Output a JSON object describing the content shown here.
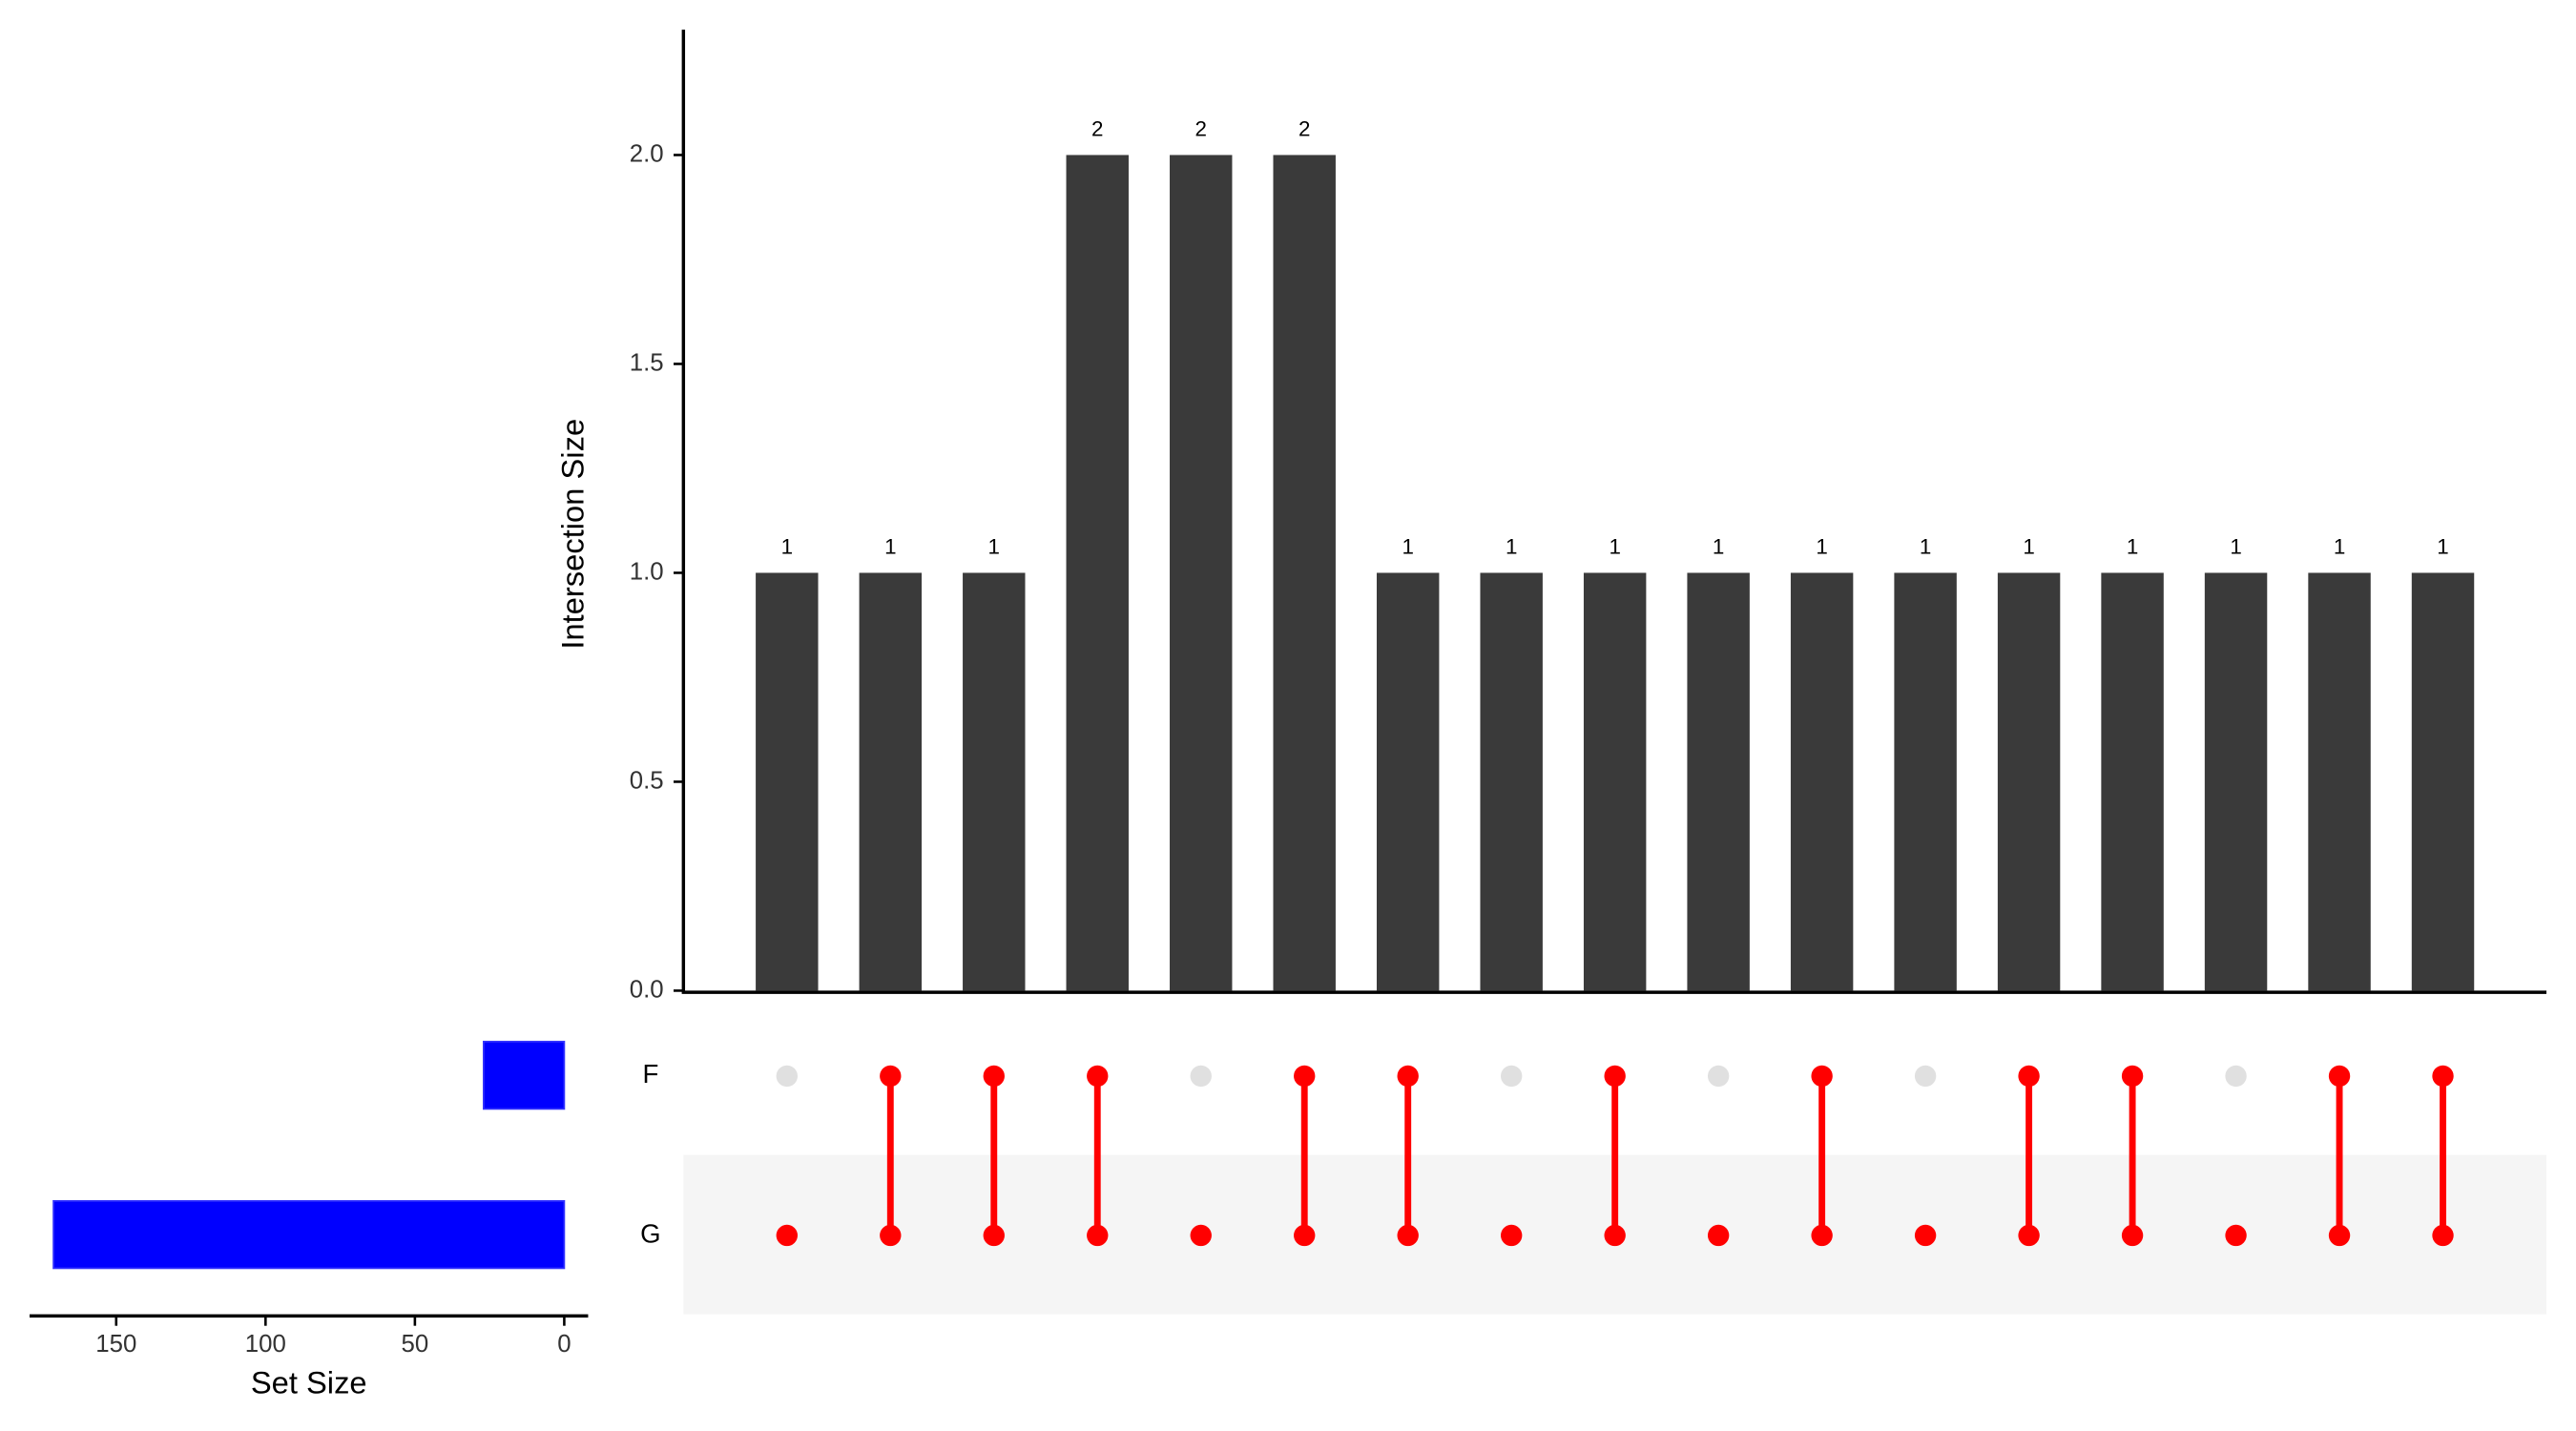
{
  "chart_data": {
    "type": "upset",
    "ylabel": "Intersection Size",
    "values": [
      1,
      1,
      1,
      2,
      2,
      2,
      1,
      1,
      1,
      1,
      1,
      1,
      1,
      1,
      1,
      1,
      1
    ],
    "bar_color": "#3a3a3a",
    "ylim": [
      0,
      2.3
    ],
    "yticks": [
      {
        "value": 0,
        "label": "0.0"
      },
      {
        "value": 0.5,
        "label": "0.5"
      },
      {
        "value": 1,
        "label": "1.0"
      },
      {
        "value": 1.5,
        "label": "1.5"
      },
      {
        "value": 2,
        "label": "2.0"
      }
    ],
    "sets": [
      "F",
      "G"
    ],
    "matrix": [
      [
        0,
        1
      ],
      [
        1,
        1
      ],
      [
        1,
        1
      ],
      [
        1,
        1
      ],
      [
        0,
        1
      ],
      [
        1,
        1
      ],
      [
        1,
        1
      ],
      [
        0,
        1
      ],
      [
        1,
        1
      ],
      [
        0,
        1
      ],
      [
        1,
        1
      ],
      [
        0,
        1
      ],
      [
        1,
        1
      ],
      [
        1,
        1
      ],
      [
        0,
        1
      ],
      [
        1,
        1
      ],
      [
        1,
        1
      ]
    ],
    "dot_color": "#ff0000",
    "inactive_color": "#e0e0e0",
    "set_sizes": [
      27,
      171
    ],
    "set_color": "#0000ff",
    "xlabel": "Set Size",
    "xlim": [
      179,
      -8
    ],
    "xticks": [
      150,
      100,
      50,
      0
    ]
  }
}
